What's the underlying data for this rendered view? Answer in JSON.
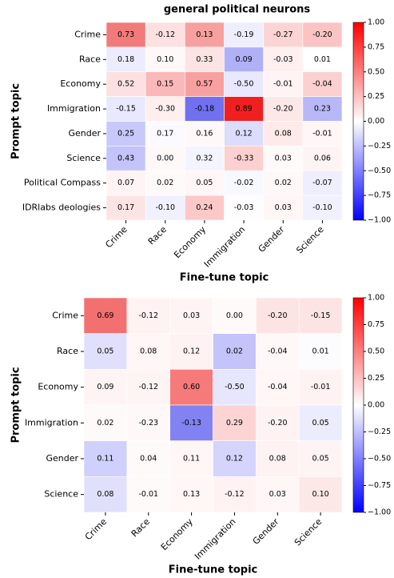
{
  "chart_data": [
    {
      "type": "heatmap",
      "title": "general political neurons",
      "x_label": "Fine-tune topic",
      "y_label": "Prompt topic",
      "x_categories": [
        "Crime",
        "Race",
        "Economy",
        "Immigration",
        "Gender",
        "Science"
      ],
      "y_categories": [
        "Crime",
        "Race",
        "Economy",
        "Immigration",
        "Gender",
        "Science",
        "Political Compass",
        "IDRlabs deologies"
      ],
      "values": [
        [
          0.73,
          -0.12,
          0.13,
          -0.19,
          -0.27,
          -0.2
        ],
        [
          0.18,
          0.1,
          0.33,
          0.09,
          -0.03,
          0.01
        ],
        [
          0.52,
          0.15,
          0.57,
          -0.5,
          -0.01,
          -0.04
        ],
        [
          -0.15,
          -0.3,
          -0.18,
          0.89,
          -0.2,
          0.23
        ],
        [
          0.25,
          0.17,
          0.16,
          0.12,
          0.08,
          -0.01
        ],
        [
          0.43,
          0.0,
          0.32,
          -0.33,
          0.03,
          0.06
        ],
        [
          0.07,
          0.02,
          0.05,
          -0.02,
          0.02,
          -0.07
        ],
        [
          0.17,
          -0.1,
          0.24,
          -0.03,
          0.03,
          -0.1
        ]
      ],
      "value_labels": [
        [
          "0.73",
          "-0.12",
          "0.13",
          "-0.19",
          "-0.27",
          "-0.20"
        ],
        [
          "0.18",
          "0.10",
          "0.33",
          "0.09",
          "-0.03",
          "0.01"
        ],
        [
          "0.52",
          "0.15",
          "0.57",
          "-0.50",
          "-0.01",
          "-0.04"
        ],
        [
          "-0.15",
          "-0.30",
          "-0.18",
          "0.89",
          "-0.20",
          "0.23"
        ],
        [
          "0.25",
          "0.17",
          "0.16",
          "0.12",
          "0.08",
          "-0.01"
        ],
        [
          "0.43",
          "0.00",
          "0.32",
          "-0.33",
          "0.03",
          "0.06"
        ],
        [
          "0.07",
          "0.02",
          "0.05",
          "-0.02",
          "0.02",
          "-0.07"
        ],
        [
          "0.17",
          "-0.10",
          "0.24",
          "-0.03",
          "0.03",
          "-0.10"
        ]
      ],
      "colors": [
        [
          "#f27a7a",
          "#fde0e0",
          "#f6a0a0",
          "#eeeeff",
          "#fcd4d4",
          "#fbc4c4"
        ],
        [
          "#ececff",
          "#fff8f8",
          "#fde4e4",
          "#b0b0f8",
          "#fff0f0",
          "#ffffff"
        ],
        [
          "#fde0e0",
          "#fbb8b8",
          "#f8a0a0",
          "#e8e8ff",
          "#fff4f4",
          "#fcd0d0"
        ],
        [
          "#e8e8ff",
          "#ffeeee",
          "#7070f0",
          "#f02020",
          "#fde8e8",
          "#b8b8f8"
        ],
        [
          "#c8c8fa",
          "#fafaff",
          "#fff8f8",
          "#dcdcfc",
          "#ffeaea",
          "#fff6f6"
        ],
        [
          "#c4c4fa",
          "#fff8f8",
          "#f4f4ff",
          "#fcd0d0",
          "#fffafa",
          "#fff4f4"
        ],
        [
          "#fff4f4",
          "#fffafa",
          "#fff6f6",
          "#f8f8ff",
          "#fff8f8",
          "#eeeeff"
        ],
        [
          "#fde4e4",
          "#f0f0ff",
          "#fcc8c8",
          "#fdfdff",
          "#fff6f6",
          "#f0f0ff"
        ]
      ],
      "cmap": [
        "#0000ff",
        "#ffffff",
        "#ff0000"
      ],
      "zlim": [
        -1,
        1
      ],
      "zticks": [
        {
          "value": -1,
          "label": "−1.00"
        },
        {
          "value": -0.75,
          "label": "−0.75"
        },
        {
          "value": -0.5,
          "label": "−0.50"
        },
        {
          "value": -0.25,
          "label": "−0.25"
        },
        {
          "value": 0,
          "label": "0.00"
        },
        {
          "value": 0.25,
          "label": "0.25"
        },
        {
          "value": 0.5,
          "label": "0.50"
        },
        {
          "value": 0.75,
          "label": "0.75"
        },
        {
          "value": 1,
          "label": "1.00"
        }
      ]
    },
    {
      "type": "heatmap",
      "x_label": "Fine-tune topic",
      "y_label": "Prompt topic",
      "x_categories": [
        "Crime",
        "Race",
        "Economy",
        "Immigration",
        "Gender",
        "Science"
      ],
      "y_categories": [
        "Crime",
        "Race",
        "Economy",
        "Immigration",
        "Gender",
        "Science"
      ],
      "values": [
        [
          0.69,
          -0.12,
          0.03,
          0.0,
          -0.2,
          -0.15
        ],
        [
          0.05,
          0.08,
          0.12,
          0.02,
          -0.04,
          0.01
        ],
        [
          0.09,
          -0.12,
          0.6,
          -0.5,
          -0.04,
          -0.01
        ],
        [
          0.02,
          -0.23,
          -0.13,
          0.29,
          -0.2,
          0.05
        ],
        [
          0.11,
          0.04,
          0.11,
          0.12,
          0.08,
          0.05
        ],
        [
          0.08,
          -0.01,
          0.13,
          -0.12,
          0.03,
          0.1
        ]
      ],
      "value_labels": [
        [
          "0.69",
          "-0.12",
          "0.03",
          "0.00",
          "-0.20",
          "-0.15"
        ],
        [
          "0.05",
          "0.08",
          "0.12",
          "0.02",
          "-0.04",
          "0.01"
        ],
        [
          "0.09",
          "-0.12",
          "0.60",
          "-0.50",
          "-0.04",
          "-0.01"
        ],
        [
          "0.02",
          "-0.23",
          "-0.13",
          "0.29",
          "-0.20",
          "0.05"
        ],
        [
          "0.11",
          "0.04",
          "0.11",
          "0.12",
          "0.08",
          "0.05"
        ],
        [
          "0.08",
          "-0.01",
          "0.13",
          "-0.12",
          "0.03",
          "0.10"
        ]
      ],
      "colors": [
        [
          "#f27070",
          "#fff2f2",
          "#fff4f4",
          "#fffafa",
          "#fde4e4",
          "#fde4e4"
        ],
        [
          "#e0e0fc",
          "#fff6f6",
          "#fff2f2",
          "#c4c4fa",
          "#fff8f8",
          "#fcfcff"
        ],
        [
          "#fff4f4",
          "#fff4f4",
          "#f67a7a",
          "#e6e6ff",
          "#fff6f6",
          "#fff2f2"
        ],
        [
          "#fffafa",
          "#fff8f8",
          "#8282f2",
          "#fcd4d4",
          "#fff2f2",
          "#ececff"
        ],
        [
          "#d0d0fc",
          "#fffafa",
          "#fff6f6",
          "#d4d4fc",
          "#fff2f2",
          "#fff4f4"
        ],
        [
          "#e0e0fc",
          "#fffafa",
          "#fff6f6",
          "#fff2f2",
          "#fff6f6",
          "#fde8e8"
        ]
      ],
      "cmap": [
        "#0000ff",
        "#ffffff",
        "#ff0000"
      ],
      "zlim": [
        -1,
        1
      ],
      "zticks": [
        {
          "value": -1,
          "label": "−1.00"
        },
        {
          "value": -0.75,
          "label": "−0.75"
        },
        {
          "value": -0.5,
          "label": "−0.50"
        },
        {
          "value": -0.25,
          "label": "−0.25"
        },
        {
          "value": 0,
          "label": "0.00"
        },
        {
          "value": 0.25,
          "label": "0.25"
        },
        {
          "value": 0.5,
          "label": "0.50"
        },
        {
          "value": 0.75,
          "label": "0.75"
        },
        {
          "value": 1,
          "label": "1.00"
        }
      ]
    }
  ]
}
